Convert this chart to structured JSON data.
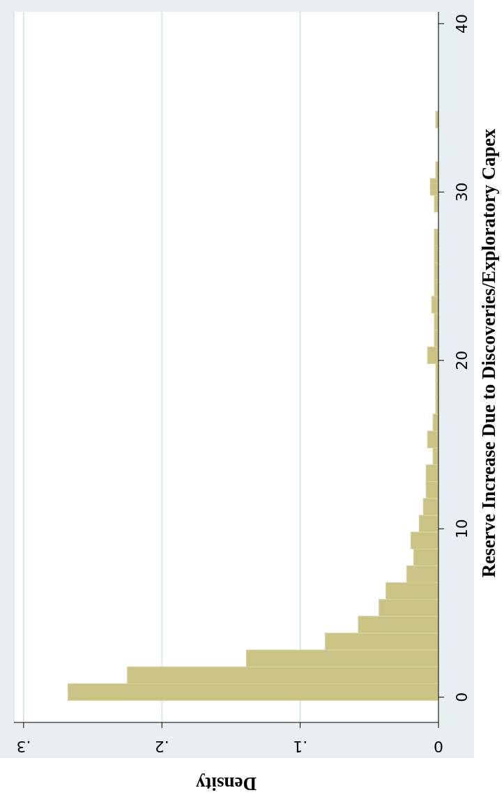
{
  "chart_data": {
    "type": "histogram",
    "orientation": "horizontal",
    "xlabel": "Density",
    "ylabel": "Reserve Increase Due to Discoveries/Exploratory Capex",
    "bins": [
      -0.2,
      0.8,
      1.8,
      2.8,
      3.8,
      4.8,
      5.8,
      6.8,
      7.8,
      8.8,
      9.8,
      10.8,
      11.8,
      12.8,
      13.8,
      14.8,
      15.8,
      16.8,
      17.8,
      18.8,
      19.8,
      20.8,
      21.8,
      22.8,
      23.8,
      24.8,
      25.8,
      26.8,
      27.8,
      28.8,
      29.8,
      30.8,
      31.8,
      32.8,
      33.8,
      34.8
    ],
    "values": [
      0.268,
      0.225,
      0.139,
      0.082,
      0.058,
      0.043,
      0.038,
      0.023,
      0.018,
      0.02,
      0.014,
      0.011,
      0.009,
      0.009,
      0.004,
      0.008,
      0.004,
      0.002,
      0.002,
      0.002,
      0.008,
      0.003,
      0.003,
      0.005,
      0.003,
      0.003,
      0.003,
      0.003,
      0,
      0.003,
      0.006,
      0.002,
      0,
      0,
      0.002
    ],
    "color": "#cbc383",
    "xlim": [
      0.307,
      0
    ],
    "ylim": [
      -1.5,
      40.7
    ],
    "xticks": [
      {
        "value": 0,
        "label": "0"
      },
      {
        "value": 0.1,
        "label": ".1"
      },
      {
        "value": 0.2,
        "label": ".2"
      },
      {
        "value": 0.3,
        "label": ".3"
      }
    ],
    "yticks": [
      0,
      10,
      20,
      30,
      40
    ],
    "grid": "x"
  }
}
